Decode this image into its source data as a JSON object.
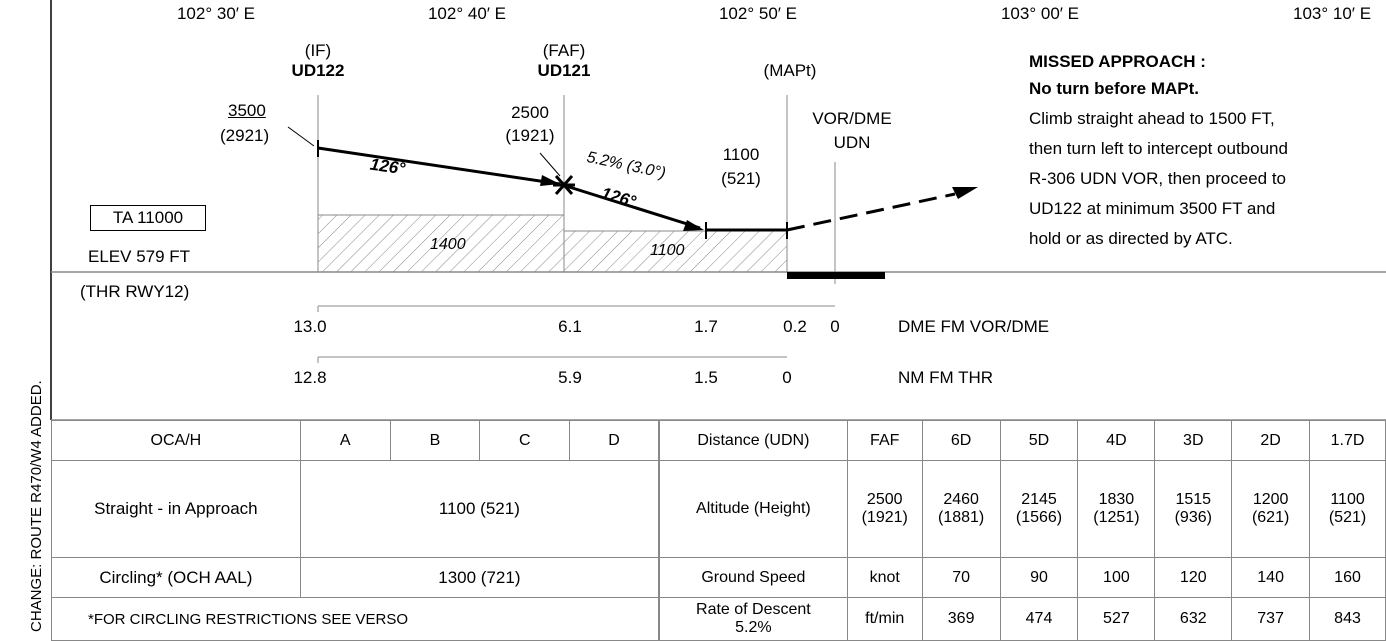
{
  "margin_note": "CHANGE: ROUTE R470/W4 ADDED.",
  "longitudes": [
    "102° 30′ E",
    "102° 40′ E",
    "102° 50′ E",
    "103° 00′ E",
    "103° 10′ E"
  ],
  "fixes": {
    "if_tag": "(IF)",
    "if_name": "UD122",
    "faf_tag": "(FAF)",
    "faf_name": "UD121",
    "mapt_tag": "(MAPt)",
    "vor_label": "VOR/DME",
    "vor_name": "UDN"
  },
  "altitudes": {
    "if_alt": "3500",
    "if_height": "(2921)",
    "faf_alt": "2500",
    "faf_height": "(1921)",
    "sd_alt": "1100",
    "sd_height": "(521)"
  },
  "profile": {
    "course1": "126°",
    "course2": "126°",
    "gradient": "5.2% (3.0°)",
    "seg1_min": "1400",
    "seg2_min": "1100",
    "ta": "TA 11000",
    "elev": "ELEV 579 FT",
    "thr": "(THR RWY12)"
  },
  "missed_approach": {
    "title": "MISSED APPROACH :",
    "subtitle": "No turn before MAPt.",
    "lines": [
      "Climb straight ahead to 1500 FT,",
      "then turn left to intercept outbound",
      "R-306 UDN VOR, then proceed to",
      "UD122 at minimum 3500 FT and",
      "hold or as directed by ATC."
    ]
  },
  "dme_scale": {
    "values": [
      "13.0",
      "6.1",
      "1.7",
      "0.2",
      "0"
    ],
    "label": "DME FM VOR/DME"
  },
  "thr_scale": {
    "values": [
      "12.8",
      "5.9",
      "1.5",
      "0"
    ],
    "label": "NM FM THR"
  },
  "minima": {
    "header": [
      "OCA/H",
      "A",
      "B",
      "C",
      "D"
    ],
    "straight_label": "Straight - in Approach",
    "straight_value": "1100 (521)",
    "circling_label": "Circling* (OCH AAL)",
    "circling_value": "1300 (721)",
    "footnote": "*FOR CIRCLING RESTRICTIONS SEE VERSO"
  },
  "descent_table": {
    "dist_label": "Distance (UDN)",
    "dist": [
      "FAF",
      "6D",
      "5D",
      "4D",
      "3D",
      "2D",
      "1.7D"
    ],
    "alt_label": "Altitude (Height)",
    "alt": [
      [
        "2500",
        "(1921)"
      ],
      [
        "2460",
        "(1881)"
      ],
      [
        "2145",
        "(1566)"
      ],
      [
        "1830",
        "(1251)"
      ],
      [
        "1515",
        "(936)"
      ],
      [
        "1200",
        "(621)"
      ],
      [
        "1100",
        "(521)"
      ]
    ],
    "gs_label": "Ground Speed",
    "gs_unit": "knot",
    "gs": [
      "70",
      "90",
      "100",
      "120",
      "140",
      "160"
    ],
    "rod_label": "Rate of Descent 5.2%",
    "rod_unit": "ft/min",
    "rod": [
      "369",
      "474",
      "527",
      "632",
      "737",
      "843"
    ]
  }
}
